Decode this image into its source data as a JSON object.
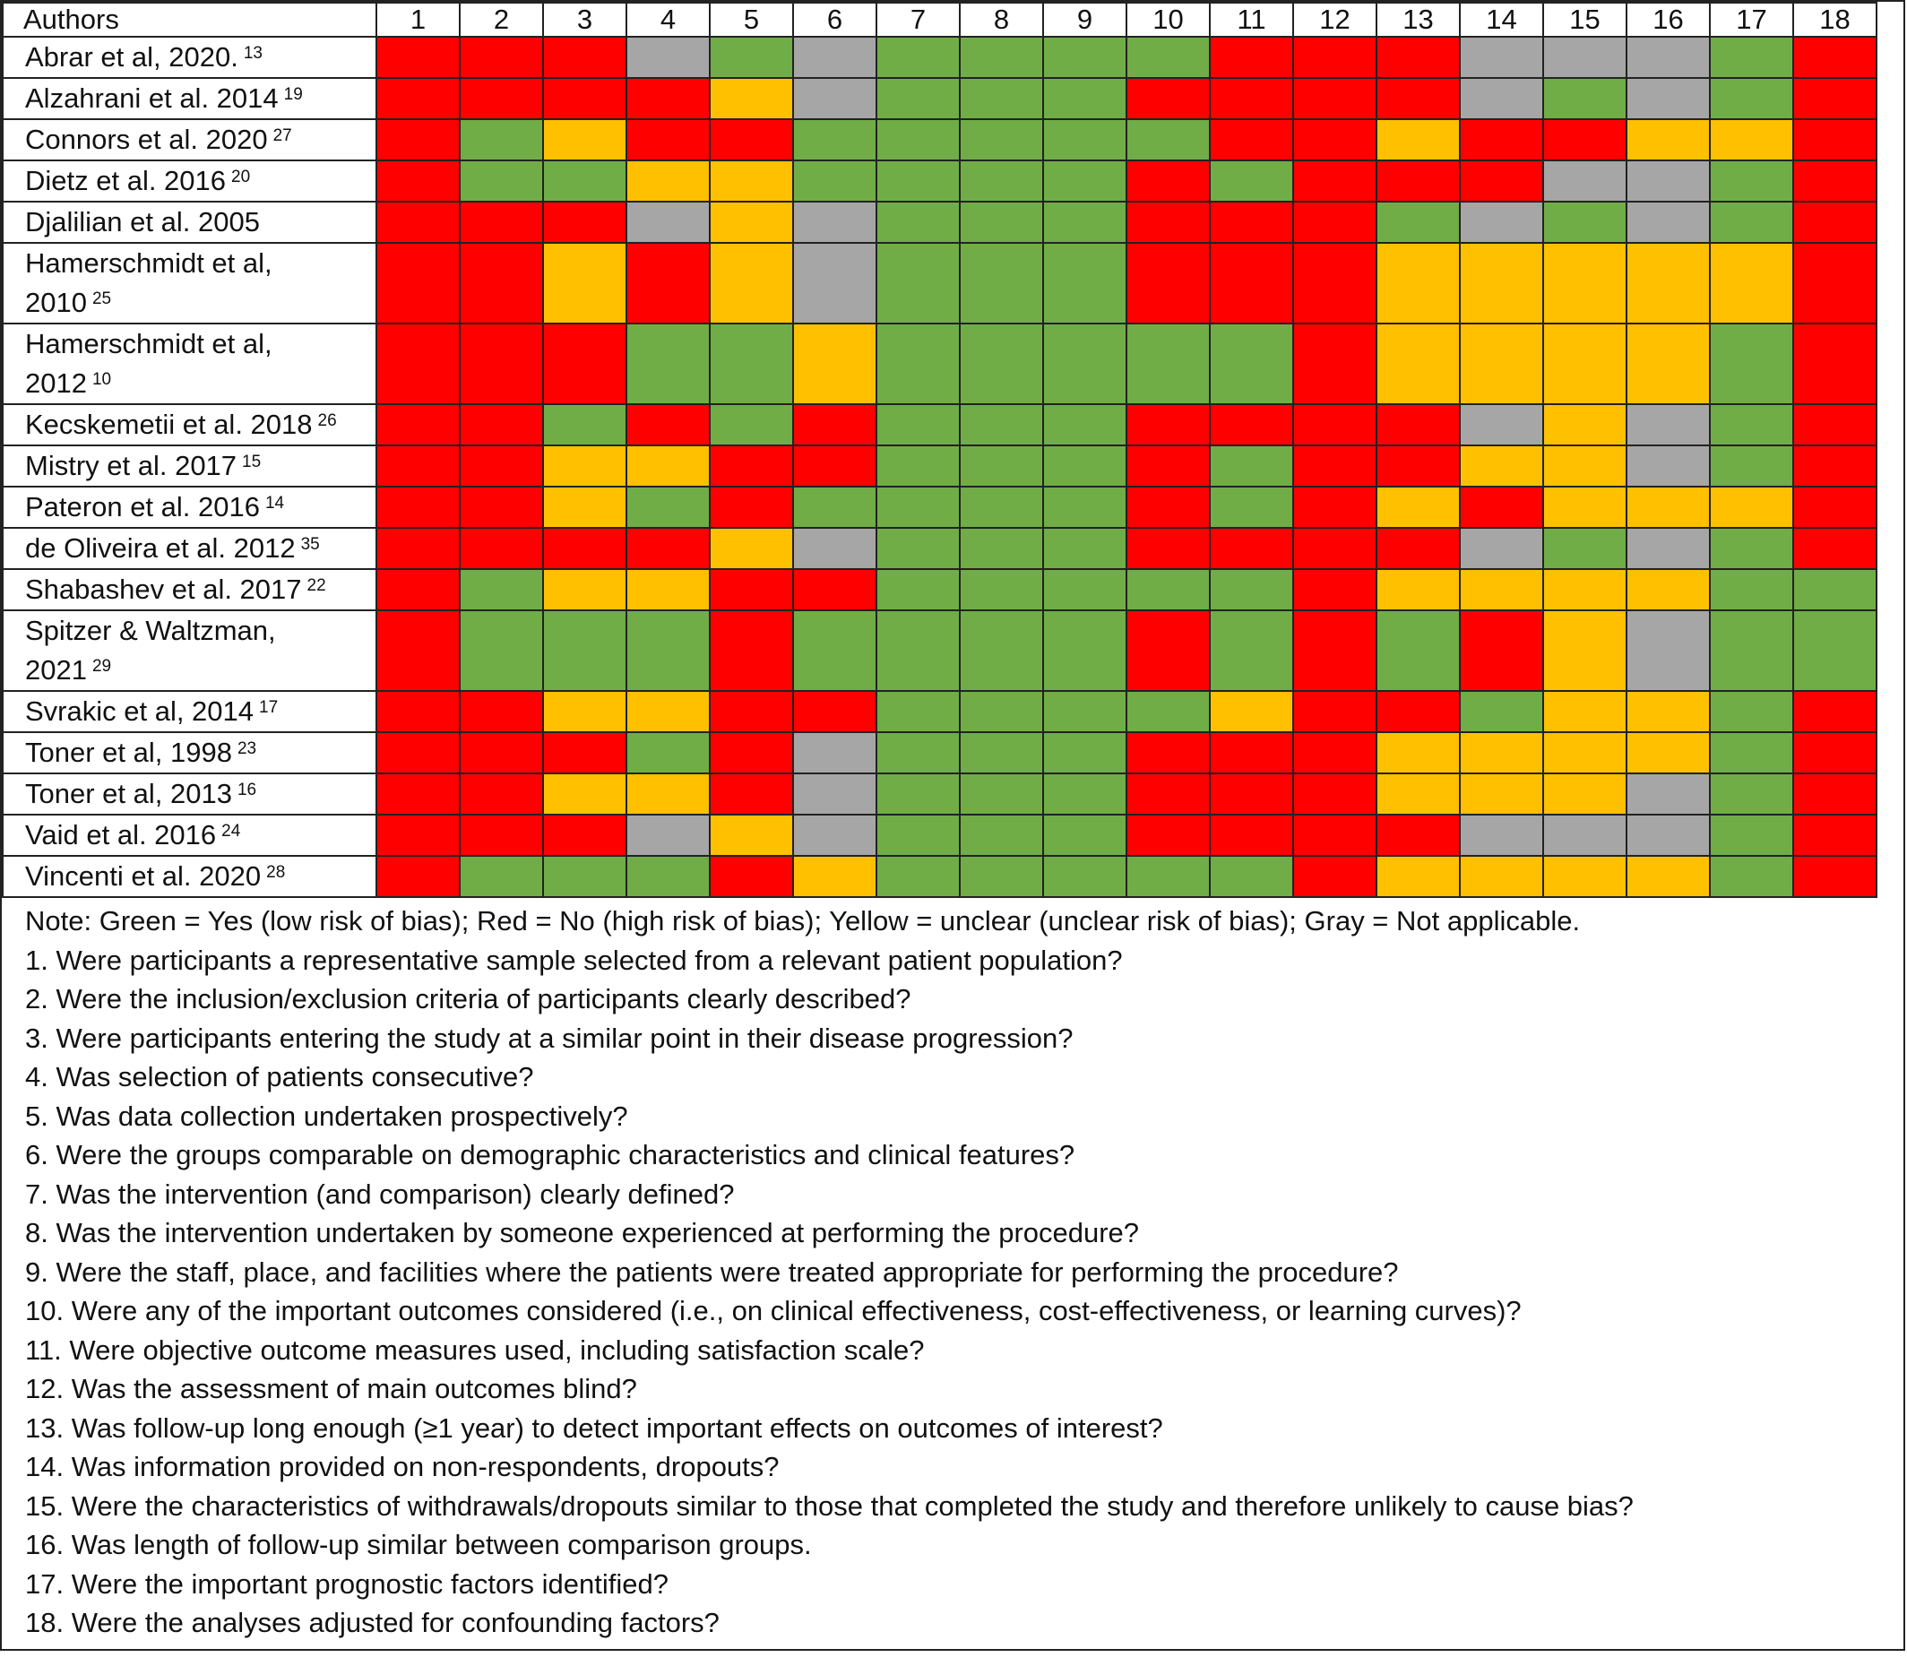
{
  "header": {
    "authors_label": "Authors",
    "columns": [
      "1",
      "2",
      "3",
      "4",
      "5",
      "6",
      "7",
      "8",
      "9",
      "10",
      "11",
      "12",
      "13",
      "14",
      "15",
      "16",
      "17",
      "18"
    ]
  },
  "legend_colors": {
    "G": "#70ad47",
    "R": "#ff0000",
    "Y": "#ffc000",
    "X": "#a6a6a6"
  },
  "rows": [
    {
      "line1": "Abrar et al, 2020.",
      "line2": "",
      "ref": "13",
      "tall": false,
      "cells": [
        "R",
        "R",
        "R",
        "X",
        "G",
        "X",
        "G",
        "G",
        "G",
        "G",
        "R",
        "R",
        "R",
        "X",
        "X",
        "X",
        "G",
        "R"
      ]
    },
    {
      "line1": "Alzahrani et al. 2014",
      "line2": "",
      "ref": "19",
      "tall": false,
      "cells": [
        "R",
        "R",
        "R",
        "R",
        "Y",
        "X",
        "G",
        "G",
        "G",
        "R",
        "R",
        "R",
        "R",
        "X",
        "G",
        "X",
        "G",
        "R"
      ]
    },
    {
      "line1": "Connors et al. 2020",
      "line2": "",
      "ref": "27",
      "tall": false,
      "cells": [
        "R",
        "G",
        "Y",
        "R",
        "R",
        "G",
        "G",
        "G",
        "G",
        "G",
        "R",
        "R",
        "Y",
        "R",
        "R",
        "Y",
        "Y",
        "R"
      ]
    },
    {
      "line1": "Dietz et al. 2016",
      "line2": "",
      "ref": "20",
      "tall": false,
      "cells": [
        "R",
        "G",
        "G",
        "Y",
        "Y",
        "G",
        "G",
        "G",
        "G",
        "R",
        "G",
        "R",
        "R",
        "R",
        "X",
        "X",
        "G",
        "R"
      ]
    },
    {
      "line1": "Djalilian et al. 2005",
      "line2": "",
      "ref": "",
      "tall": false,
      "cells": [
        "R",
        "R",
        "R",
        "X",
        "Y",
        "X",
        "G",
        "G",
        "G",
        "R",
        "R",
        "R",
        "G",
        "X",
        "G",
        "X",
        "G",
        "R"
      ]
    },
    {
      "line1": "Hamerschmidt et al,",
      "line2": "2010",
      "ref": "25",
      "tall": true,
      "cells": [
        "R",
        "R",
        "Y",
        "R",
        "Y",
        "X",
        "G",
        "G",
        "G",
        "R",
        "R",
        "R",
        "Y",
        "Y",
        "Y",
        "Y",
        "Y",
        "R"
      ]
    },
    {
      "line1": "Hamerschmidt et al,",
      "line2": "2012",
      "ref": "10",
      "tall": true,
      "cells": [
        "R",
        "R",
        "R",
        "G",
        "G",
        "Y",
        "G",
        "G",
        "G",
        "G",
        "G",
        "R",
        "Y",
        "Y",
        "Y",
        "Y",
        "G",
        "R"
      ]
    },
    {
      "line1": "Kecskemetii et al. 2018",
      "line2": "",
      "ref": "26",
      "tall": false,
      "cells": [
        "R",
        "R",
        "G",
        "R",
        "G",
        "R",
        "G",
        "G",
        "G",
        "R",
        "R",
        "R",
        "R",
        "X",
        "Y",
        "X",
        "G",
        "R"
      ]
    },
    {
      "line1": "Mistry et al. 2017",
      "line2": "",
      "ref": "15",
      "tall": false,
      "cells": [
        "R",
        "R",
        "Y",
        "Y",
        "R",
        "R",
        "G",
        "G",
        "G",
        "R",
        "G",
        "R",
        "R",
        "Y",
        "Y",
        "X",
        "G",
        "R"
      ]
    },
    {
      "line1": "Pateron et al. 2016",
      "line2": "",
      "ref": "14",
      "tall": false,
      "cells": [
        "R",
        "R",
        "Y",
        "G",
        "R",
        "G",
        "G",
        "G",
        "G",
        "R",
        "G",
        "R",
        "Y",
        "R",
        "Y",
        "Y",
        "Y",
        "R"
      ]
    },
    {
      "line1": "de Oliveira et al. 2012",
      "line2": "",
      "ref": "35",
      "tall": false,
      "cells": [
        "R",
        "R",
        "R",
        "R",
        "Y",
        "X",
        "G",
        "G",
        "G",
        "R",
        "R",
        "R",
        "R",
        "X",
        "G",
        "X",
        "G",
        "R"
      ]
    },
    {
      "line1": "Shabashev et al. 2017",
      "line2": "",
      "ref": "22",
      "tall": false,
      "cells": [
        "R",
        "G",
        "Y",
        "Y",
        "R",
        "R",
        "G",
        "G",
        "G",
        "G",
        "G",
        "R",
        "Y",
        "Y",
        "Y",
        "Y",
        "G",
        "G"
      ]
    },
    {
      "line1": "Spitzer & Waltzman,",
      "line2": "2021",
      "ref": "29",
      "tall": true,
      "cells": [
        "R",
        "G",
        "G",
        "G",
        "R",
        "G",
        "G",
        "G",
        "G",
        "R",
        "G",
        "R",
        "G",
        "R",
        "Y",
        "X",
        "G",
        "G"
      ]
    },
    {
      "line1": "Svrakic et al, 2014",
      "line2": "",
      "ref": "17",
      "tall": false,
      "cells": [
        "R",
        "R",
        "Y",
        "Y",
        "R",
        "R",
        "G",
        "G",
        "G",
        "G",
        "Y",
        "R",
        "R",
        "G",
        "Y",
        "Y",
        "G",
        "R"
      ]
    },
    {
      "line1": "Toner et al, 1998",
      "line2": "",
      "ref": "23",
      "tall": false,
      "cells": [
        "R",
        "R",
        "R",
        "G",
        "R",
        "X",
        "G",
        "G",
        "G",
        "R",
        "R",
        "R",
        "Y",
        "Y",
        "Y",
        "Y",
        "G",
        "R"
      ]
    },
    {
      "line1": "Toner et al, 2013",
      "line2": "",
      "ref": "16",
      "tall": false,
      "cells": [
        "R",
        "R",
        "Y",
        "Y",
        "R",
        "X",
        "G",
        "G",
        "G",
        "R",
        "R",
        "R",
        "Y",
        "Y",
        "Y",
        "X",
        "G",
        "R"
      ]
    },
    {
      "line1": "Vaid et al. 2016",
      "line2": "",
      "ref": "24",
      "tall": false,
      "cells": [
        "R",
        "R",
        "R",
        "X",
        "Y",
        "X",
        "G",
        "G",
        "G",
        "R",
        "R",
        "R",
        "R",
        "X",
        "X",
        "X",
        "G",
        "R"
      ]
    },
    {
      "line1": "Vincenti et al. 2020",
      "line2": "",
      "ref": "28",
      "tall": false,
      "cells": [
        "R",
        "G",
        "G",
        "G",
        "R",
        "Y",
        "G",
        "G",
        "G",
        "G",
        "G",
        "R",
        "Y",
        "Y",
        "Y",
        "Y",
        "G",
        "R"
      ]
    }
  ],
  "notes": [
    "Note: Green = Yes (low risk of bias); Red = No (high risk of bias); Yellow = unclear (unclear risk of bias); Gray = Not applicable.",
    "1. Were participants a representative sample selected from a relevant patient population?",
    "2. Were the inclusion/exclusion criteria of participants clearly described?",
    "3. Were participants entering the study at a similar point in their disease progression?",
    "4. Was selection of patients consecutive?",
    "5. Was data collection undertaken prospectively?",
    "6. Were the groups comparable on demographic characteristics and clinical features?",
    "7. Was the intervention (and comparison) clearly defined?",
    "8. Was the intervention undertaken by someone experienced at performing the procedure?",
    "9. Were the staff, place, and facilities where the patients were treated appropriate for performing the procedure?",
    "10. Were any of the important outcomes considered (i.e., on clinical effectiveness, cost-effectiveness, or learning curves)?",
    "11. Were objective outcome measures used, including satisfaction scale?",
    "12. Was the assessment of main outcomes blind?",
    "13. Was follow-up long enough (≥1 year) to detect important effects on outcomes of interest?",
    "14. Was information provided on non-respondents, dropouts?",
    "15. Were the characteristics of withdrawals/dropouts similar to those that completed the study and therefore unlikely to cause bias?",
    "16. Was length of follow-up similar between comparison groups.",
    "17. Were the important prognostic factors identified?",
    "18. Were the analyses adjusted for confounding factors?"
  ]
}
